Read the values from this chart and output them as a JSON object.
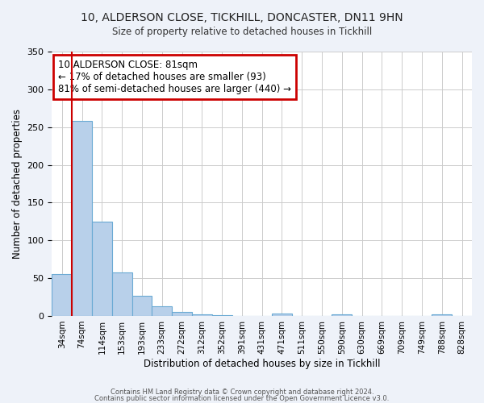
{
  "title": "10, ALDERSON CLOSE, TICKHILL, DONCASTER, DN11 9HN",
  "subtitle": "Size of property relative to detached houses in Tickhill",
  "xlabel": "Distribution of detached houses by size in Tickhill",
  "ylabel": "Number of detached properties",
  "bar_labels": [
    "34sqm",
    "74sqm",
    "114sqm",
    "153sqm",
    "193sqm",
    "233sqm",
    "272sqm",
    "312sqm",
    "352sqm",
    "391sqm",
    "431sqm",
    "471sqm",
    "511sqm",
    "550sqm",
    "590sqm",
    "630sqm",
    "669sqm",
    "709sqm",
    "749sqm",
    "788sqm",
    "828sqm"
  ],
  "bar_values": [
    55,
    258,
    125,
    58,
    27,
    13,
    5,
    2,
    1,
    0,
    0,
    3,
    0,
    0,
    2,
    0,
    0,
    0,
    0,
    2,
    0
  ],
  "bar_color": "#b8d0ea",
  "bar_edge_color": "#6aaad4",
  "ylim": [
    0,
    350
  ],
  "yticks": [
    0,
    50,
    100,
    150,
    200,
    250,
    300,
    350
  ],
  "vline_color": "#cc0000",
  "annotation_title": "10 ALDERSON CLOSE: 81sqm",
  "annotation_line2": "← 17% of detached houses are smaller (93)",
  "annotation_line3": "81% of semi-detached houses are larger (440) →",
  "annotation_box_color": "#ffffff",
  "annotation_box_edge": "#cc0000",
  "footer1": "Contains HM Land Registry data © Crown copyright and database right 2024.",
  "footer2": "Contains public sector information licensed under the Open Government Licence v3.0.",
  "background_color": "#eef2f9",
  "plot_bg_color": "#ffffff",
  "grid_color": "#cccccc"
}
